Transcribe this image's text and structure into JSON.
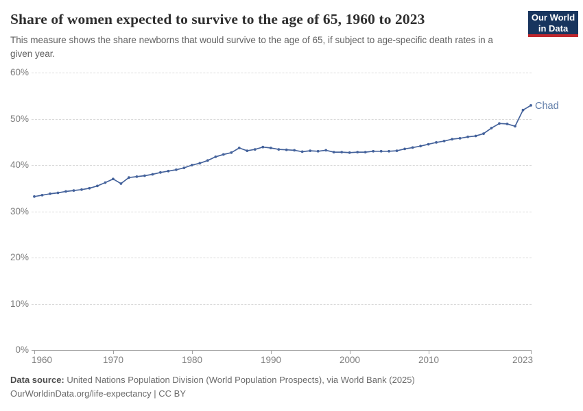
{
  "header": {
    "title": "Share of women expected to survive to the age of 65, 1960 to 2023",
    "subtitle": "This measure shows the share newborns that would survive to the age of 65, if subject to age-specific death rates in a given year.",
    "logo": {
      "line1": "Our World",
      "line2": "in Data",
      "bg_color": "#18355e",
      "bar_color": "#c0272d"
    }
  },
  "chart_data": {
    "type": "line",
    "title": "Share of women expected to survive to the age of 65, 1960 to 2023",
    "unit": "%",
    "xlim": [
      1960,
      2023
    ],
    "ylim": [
      0,
      60
    ],
    "grid": "horizontal-dashed",
    "legend": "end-of-line-label",
    "x_tick_labels": [
      "1960",
      "1970",
      "1980",
      "1990",
      "2000",
      "2010",
      "2023"
    ],
    "x_tick_years": [
      1960,
      1970,
      1980,
      1990,
      2000,
      2010,
      2023
    ],
    "y_tick_labels": [
      "0%",
      "10%",
      "20%",
      "30%",
      "40%",
      "50%",
      "60%"
    ],
    "series": [
      {
        "name": "Chad",
        "color": "#44629b",
        "end_label_color": "#5f7ca8",
        "years": [
          1960,
          1961,
          1962,
          1963,
          1964,
          1965,
          1966,
          1967,
          1968,
          1969,
          1970,
          1971,
          1972,
          1973,
          1974,
          1975,
          1976,
          1977,
          1978,
          1979,
          1980,
          1981,
          1982,
          1983,
          1984,
          1985,
          1986,
          1987,
          1988,
          1989,
          1990,
          1991,
          1992,
          1993,
          1994,
          1995,
          1996,
          1997,
          1998,
          1999,
          2000,
          2001,
          2002,
          2003,
          2004,
          2005,
          2006,
          2007,
          2008,
          2009,
          2010,
          2011,
          2012,
          2013,
          2014,
          2015,
          2016,
          2017,
          2018,
          2019,
          2020,
          2021,
          2022,
          2023
        ],
        "values": [
          33.2,
          33.5,
          33.8,
          34.0,
          34.3,
          34.5,
          34.7,
          35.0,
          35.5,
          36.2,
          37.0,
          36.0,
          37.3,
          37.5,
          37.7,
          38.0,
          38.4,
          38.7,
          39.0,
          39.4,
          40.0,
          40.4,
          41.0,
          41.8,
          42.3,
          42.7,
          43.7,
          43.1,
          43.4,
          43.9,
          43.7,
          43.4,
          43.3,
          43.2,
          42.9,
          43.1,
          43.0,
          43.2,
          42.8,
          42.8,
          42.7,
          42.8,
          42.8,
          43.0,
          43.0,
          43.0,
          43.1,
          43.5,
          43.8,
          44.1,
          44.5,
          44.9,
          45.2,
          45.6,
          45.8,
          46.1,
          46.3,
          46.8,
          48.0,
          49.0,
          48.9,
          48.4,
          51.9,
          52.9
        ]
      }
    ]
  },
  "footer": {
    "source_label": "Data source:",
    "source_text": " United Nations Population Division (World Population Prospects), via World Bank (2025)",
    "license_line": "OurWorldinData.org/life-expectancy | CC BY"
  }
}
